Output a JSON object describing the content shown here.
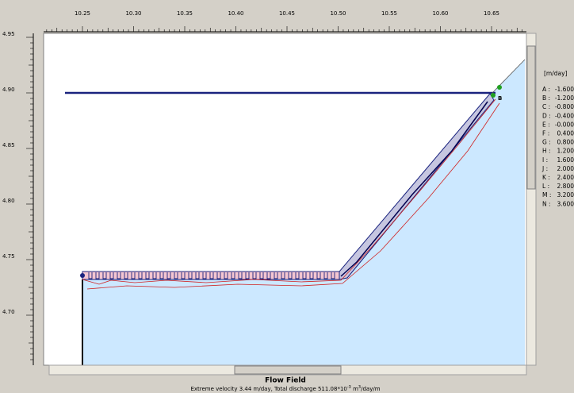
{
  "top_ruler": {
    "labels": [
      "10.25",
      "10.30",
      "10.35",
      "10.40",
      "10.45",
      "10.50",
      "10.55",
      "10.60",
      "10.65"
    ]
  },
  "left_ruler": {
    "labels": [
      "4.95",
      "4.90",
      "4.85",
      "4.80",
      "4.75",
      "4.70"
    ]
  },
  "legend": {
    "unit": "[m/day]",
    "entries": [
      {
        "letter": "A :",
        "value": "-1.600"
      },
      {
        "letter": "B :",
        "value": "-1.200"
      },
      {
        "letter": "C :",
        "value": "-0.800"
      },
      {
        "letter": "D :",
        "value": "-0.400"
      },
      {
        "letter": "E :",
        "value": "-0.000"
      },
      {
        "letter": "F :",
        "value": "0.400"
      },
      {
        "letter": "G :",
        "value": "0.800"
      },
      {
        "letter": "H :",
        "value": "1.200"
      },
      {
        "letter": "I :",
        "value": "1.600"
      },
      {
        "letter": "J :",
        "value": "2.000"
      },
      {
        "letter": "K :",
        "value": "2.400"
      },
      {
        "letter": "L :",
        "value": "2.800"
      },
      {
        "letter": "M :",
        "value": "3.200"
      },
      {
        "letter": "N :",
        "value": "3.600"
      }
    ]
  },
  "footer": {
    "title": "Flow Field",
    "subtitle": [
      "Extreme velocity 3.44 m/day, Total discharge 511.08*10",
      "-3",
      " m",
      "3",
      "/day/m"
    ]
  },
  "marker": "B"
}
